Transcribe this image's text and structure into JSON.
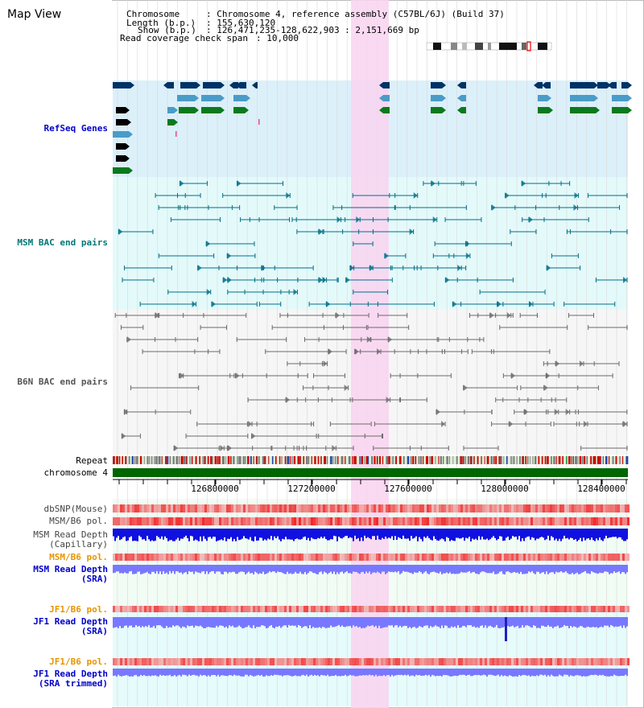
{
  "page": {
    "title": "Map View"
  },
  "info": {
    "chromosome_label": "Chromosome",
    "chromosome_value": ": Chromosome 4, reference assembly (C57BL/6J) (Build 37)",
    "length_label": "Length (b.p.)",
    "length_value": ": 155,630,120",
    "show_label": "Show (b.p.)",
    "show_value": ": 126,471,235-128,622,903 : 2,151,669 bp",
    "coverage_label": "Read coverage check span",
    "coverage_value": ": 10,000"
  },
  "tracks": {
    "refseq": "RefSeq Genes",
    "msm_bac": "MSM BAC end pairs",
    "b6n_bac": "B6N BAC end pairs",
    "repeat": "Repeat",
    "chromosome": "chromosome 4",
    "dbsnp": "dbSNP(Mouse)",
    "msm_b6_pol": "MSM/B6 pol.",
    "msm_depth_cap_1": "MSM Read Depth",
    "msm_depth_cap_2": "(Capillary)",
    "msm_b6_pol_sra": "MSM/B6 pol.",
    "msm_depth_sra_1": "MSM Read Depth",
    "msm_depth_sra_2": "(SRA)",
    "jf1_b6_pol": "JF1/B6 pol.",
    "jf1_depth_1": "JF1 Read Depth",
    "jf1_depth_2": "(SRA)",
    "jf1_b6_pol_2": "JF1/B6 pol.",
    "jf1_depth_trim_1": "JF1 Read Depth",
    "jf1_depth_trim_2": "(SRA trimmed)"
  },
  "axis": {
    "ticks": [
      "126800000",
      "127200000",
      "127600000",
      "128000000",
      "128400000"
    ]
  },
  "colors": {
    "refseq_bg": "#dcf0fa",
    "msm_bg": "#e4fafa",
    "b6n_bg": "#f6f6f6",
    "highlight": "#f9d4f0",
    "gene_dark": "#003366",
    "gene_light": "#4a9cc8",
    "gene_green": "#0a7a1e",
    "bac_teal": "#006f8a",
    "bac_gray": "#6b6b6b",
    "chromosome_bar": "#006600",
    "pol_red": "#f03030",
    "depth_blue": "#1010e0",
    "depth_light": "#7878ff",
    "label_blue": "#0000cc",
    "label_teal": "#007777",
    "label_gray": "#555555",
    "label_orange": "#e69500"
  }
}
